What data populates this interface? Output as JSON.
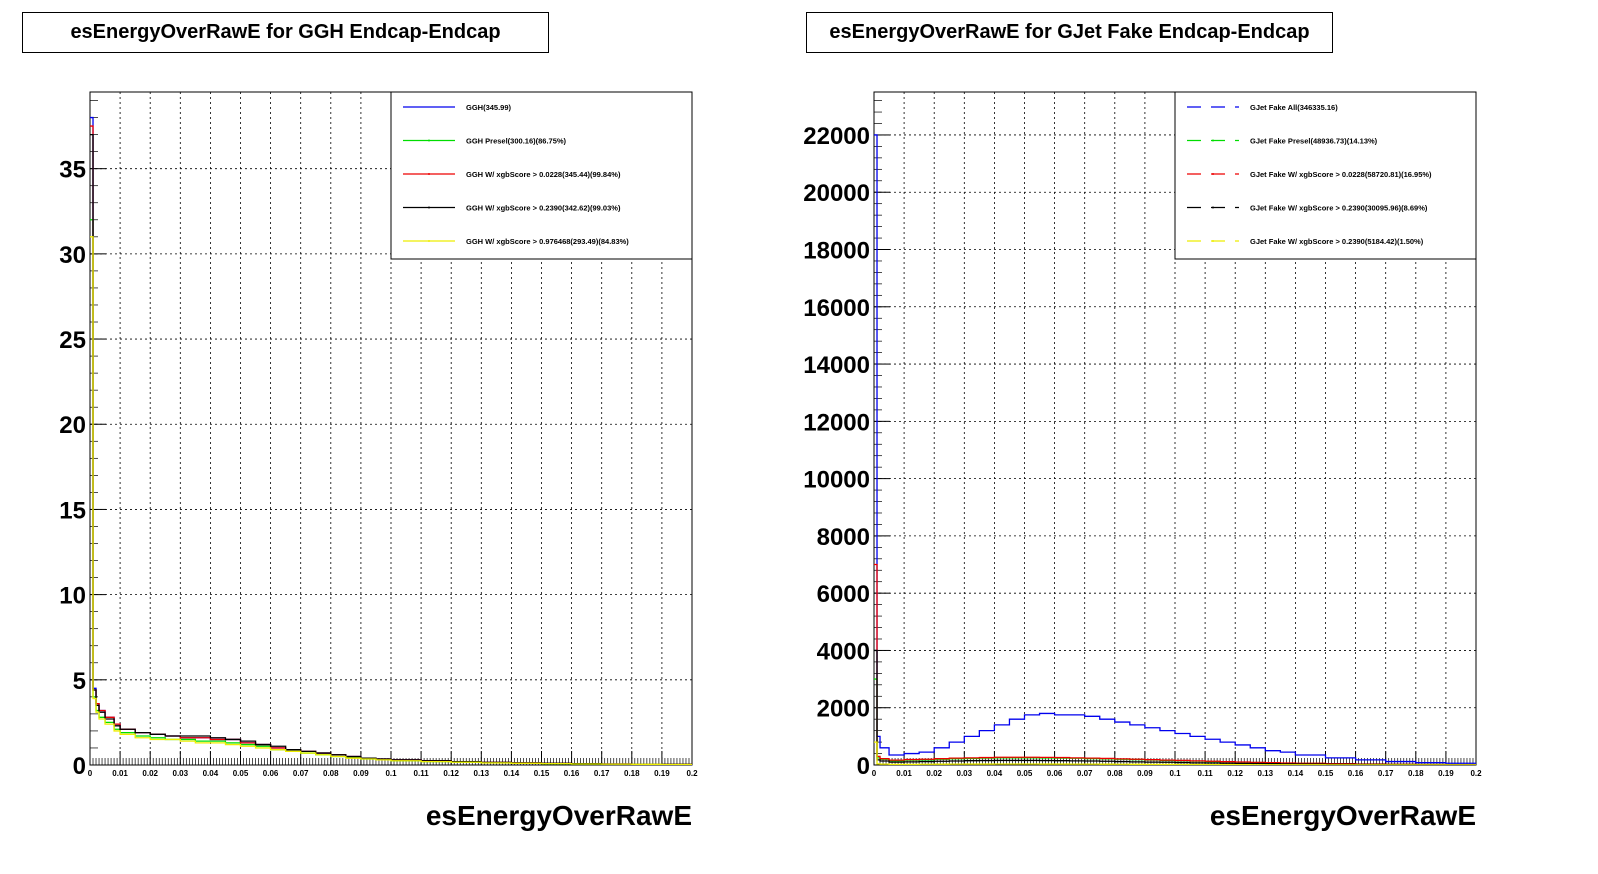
{
  "chart_data": [
    {
      "type": "line",
      "title": "esEnergyOverRawE for GGH Endcap-Endcap",
      "xlabel": "esEnergyOverRawE",
      "ylabel": "",
      "xlim": [
        0,
        0.2
      ],
      "ylim": [
        0,
        39.5
      ],
      "grid": true,
      "legend_position": "top-right",
      "x_ticks": [
        "0",
        "0.01",
        "0.02",
        "0.03",
        "0.04",
        "0.05",
        "0.06",
        "0.07",
        "0.08",
        "0.09",
        "0.1",
        "0.11",
        "0.12",
        "0.13",
        "0.14",
        "0.15",
        "0.16",
        "0.17",
        "0.18",
        "0.19",
        "0.2"
      ],
      "y_ticks": [
        "0",
        "5",
        "10",
        "15",
        "20",
        "25",
        "30",
        "35"
      ],
      "x": [
        0.0,
        0.001,
        0.002,
        0.003,
        0.005,
        0.008,
        0.01,
        0.015,
        0.02,
        0.025,
        0.03,
        0.035,
        0.04,
        0.045,
        0.05,
        0.055,
        0.06,
        0.065,
        0.07,
        0.075,
        0.08,
        0.085,
        0.09,
        0.095,
        0.1,
        0.11,
        0.12,
        0.13,
        0.14,
        0.15,
        0.16,
        0.17,
        0.18,
        0.19,
        0.2
      ],
      "series": [
        {
          "name": "GGH(345.99)",
          "color": "#0000ee",
          "dashed": false,
          "values": [
            38.0,
            4.5,
            3.6,
            3.2,
            2.8,
            2.4,
            2.1,
            1.9,
            1.8,
            1.7,
            1.6,
            1.6,
            1.5,
            1.5,
            1.3,
            1.2,
            1.0,
            0.9,
            0.8,
            0.7,
            0.6,
            0.5,
            0.4,
            0.35,
            0.3,
            0.25,
            0.2,
            0.15,
            0.12,
            0.1,
            0.08,
            0.06,
            0.05,
            0.04,
            0.03
          ]
        },
        {
          "name": "GGH Presel(300.16)(86.75%)",
          "color": "#00dd00",
          "dashed": false,
          "values": [
            32.0,
            4.0,
            3.2,
            2.8,
            2.5,
            2.1,
            1.9,
            1.7,
            1.6,
            1.5,
            1.5,
            1.4,
            1.4,
            1.3,
            1.2,
            1.1,
            0.9,
            0.8,
            0.7,
            0.6,
            0.5,
            0.45,
            0.35,
            0.3,
            0.25,
            0.2,
            0.17,
            0.13,
            0.1,
            0.08,
            0.06,
            0.05,
            0.04,
            0.03,
            0.02
          ]
        },
        {
          "name": "GGH W/ xgbScore > 0.0228(345.44)(99.84%)",
          "color": "#ee0000",
          "dashed": false,
          "values": [
            37.5,
            4.4,
            3.6,
            3.2,
            2.8,
            2.4,
            2.1,
            1.9,
            1.8,
            1.7,
            1.6,
            1.6,
            1.5,
            1.5,
            1.3,
            1.2,
            1.0,
            0.9,
            0.8,
            0.7,
            0.6,
            0.5,
            0.4,
            0.35,
            0.3,
            0.25,
            0.2,
            0.15,
            0.12,
            0.1,
            0.08,
            0.06,
            0.05,
            0.04,
            0.03
          ]
        },
        {
          "name": "GGH W/ xgbScore > 0.2390(342.62)(99.03%)",
          "color": "#000000",
          "dashed": false,
          "values": [
            37.0,
            4.4,
            3.5,
            3.1,
            2.7,
            2.3,
            2.1,
            1.9,
            1.8,
            1.7,
            1.7,
            1.7,
            1.6,
            1.5,
            1.4,
            1.2,
            1.1,
            0.9,
            0.8,
            0.7,
            0.6,
            0.5,
            0.4,
            0.35,
            0.3,
            0.25,
            0.2,
            0.15,
            0.12,
            0.1,
            0.08,
            0.06,
            0.05,
            0.04,
            0.03
          ]
        },
        {
          "name": "GGH W/ xgbScore > 0.976468(293.49)(84.83%)",
          "color": "#eeee00",
          "dashed": false,
          "values": [
            31.0,
            3.9,
            3.1,
            2.7,
            2.4,
            2.0,
            1.8,
            1.6,
            1.5,
            1.5,
            1.4,
            1.3,
            1.3,
            1.2,
            1.1,
            1.0,
            0.9,
            0.8,
            0.7,
            0.6,
            0.5,
            0.4,
            0.35,
            0.3,
            0.25,
            0.2,
            0.16,
            0.12,
            0.1,
            0.08,
            0.06,
            0.05,
            0.04,
            0.03,
            0.02
          ]
        }
      ]
    },
    {
      "type": "line",
      "title": "esEnergyOverRawE for GJet Fake Endcap-Endcap",
      "xlabel": "esEnergyOverRawE",
      "ylabel": "",
      "xlim": [
        0,
        0.2
      ],
      "ylim": [
        0,
        23500
      ],
      "grid": true,
      "legend_position": "top-right",
      "x_ticks": [
        "0",
        "0.01",
        "0.02",
        "0.03",
        "0.04",
        "0.05",
        "0.06",
        "0.07",
        "0.08",
        "0.09",
        "0.1",
        "0.11",
        "0.12",
        "0.13",
        "0.14",
        "0.15",
        "0.16",
        "0.17",
        "0.18",
        "0.19",
        "0.2"
      ],
      "y_ticks": [
        "0",
        "2000",
        "4000",
        "6000",
        "8000",
        "10000",
        "12000",
        "14000",
        "16000",
        "18000",
        "20000",
        "22000"
      ],
      "x": [
        0.0,
        0.001,
        0.002,
        0.005,
        0.01,
        0.015,
        0.02,
        0.025,
        0.03,
        0.035,
        0.04,
        0.045,
        0.05,
        0.055,
        0.06,
        0.065,
        0.07,
        0.075,
        0.08,
        0.085,
        0.09,
        0.095,
        0.1,
        0.105,
        0.11,
        0.115,
        0.12,
        0.125,
        0.13,
        0.135,
        0.14,
        0.15,
        0.16,
        0.17,
        0.18,
        0.19,
        0.2
      ],
      "series": [
        {
          "name": "GJet Fake All(346335.16)",
          "color": "#0000ee",
          "dashed": true,
          "values": [
            22000,
            1000,
            600,
            350,
            400,
            450,
            600,
            800,
            1000,
            1200,
            1400,
            1600,
            1750,
            1800,
            1750,
            1750,
            1700,
            1600,
            1500,
            1400,
            1300,
            1200,
            1100,
            1000,
            900,
            800,
            700,
            600,
            500,
            450,
            350,
            250,
            180,
            120,
            80,
            60,
            40
          ]
        },
        {
          "name": "GJet Fake Presel(48936.73)(14.13%)",
          "color": "#00dd00",
          "dashed": true,
          "values": [
            3000,
            250,
            200,
            150,
            170,
            180,
            200,
            220,
            230,
            240,
            250,
            250,
            250,
            245,
            240,
            235,
            225,
            215,
            200,
            190,
            175,
            160,
            150,
            135,
            120,
            110,
            100,
            85,
            75,
            65,
            55,
            40,
            30,
            20,
            15,
            10,
            8
          ]
        },
        {
          "name": "GJet Fake W/ xgbScore > 0.0228(58720.81)(16.95%)",
          "color": "#ee0000",
          "dashed": true,
          "values": [
            7000,
            300,
            220,
            170,
            190,
            200,
            220,
            240,
            250,
            260,
            270,
            270,
            270,
            265,
            260,
            250,
            240,
            230,
            215,
            200,
            185,
            170,
            160,
            145,
            130,
            115,
            105,
            90,
            80,
            70,
            60,
            45,
            35,
            25,
            18,
            12,
            9
          ]
        },
        {
          "name": "GJet Fake W/ xgbScore > 0.2390(30095.96)(8.69%)",
          "color": "#000000",
          "dashed": true,
          "values": [
            4000,
            180,
            140,
            100,
            110,
            120,
            130,
            140,
            150,
            155,
            160,
            160,
            160,
            155,
            150,
            145,
            140,
            130,
            120,
            110,
            100,
            95,
            85,
            75,
            70,
            60,
            55,
            50,
            45,
            40,
            35,
            25,
            20,
            15,
            10,
            8,
            6
          ]
        },
        {
          "name": "GJet Fake W/ xgbScore > 0.2390(5184.42)(1.50%)",
          "color": "#eeee00",
          "dashed": true,
          "values": [
            800,
            40,
            30,
            20,
            22,
            25,
            28,
            30,
            32,
            33,
            34,
            34,
            34,
            33,
            32,
            31,
            30,
            28,
            26,
            24,
            22,
            20,
            18,
            16,
            14,
            12,
            11,
            10,
            9,
            8,
            7,
            5,
            4,
            3,
            2,
            2,
            1
          ]
        }
      ]
    }
  ]
}
